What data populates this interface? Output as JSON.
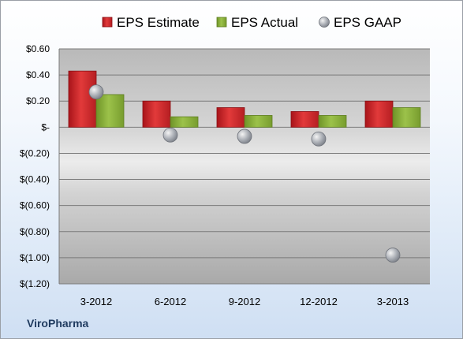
{
  "company": "ViroPharma",
  "chart_data": {
    "type": "bar",
    "categories": [
      "3-2012",
      "6-2012",
      "9-2012",
      "12-2012",
      "3-2013"
    ],
    "series": [
      {
        "name": "EPS Estimate",
        "kind": "bar",
        "color": "#d42a2a",
        "values": [
          0.43,
          0.2,
          0.15,
          0.12,
          0.2
        ]
      },
      {
        "name": "EPS Actual",
        "kind": "bar",
        "color": "#8db33c",
        "values": [
          0.25,
          0.08,
          0.09,
          0.09,
          0.15
        ]
      },
      {
        "name": "EPS GAAP",
        "kind": "scatter",
        "color": "#b8bcc4",
        "values": [
          0.27,
          -0.06,
          -0.07,
          -0.09,
          -0.98
        ]
      }
    ],
    "ylim": [
      -1.2,
      0.6
    ],
    "y_ticks": [
      0.6,
      0.4,
      0.2,
      0,
      -0.2,
      -0.4,
      -0.6,
      -0.8,
      -1.0,
      -1.2
    ],
    "y_tick_labels": [
      "$0.60",
      "$0.40",
      "$0.20",
      "$-",
      "$(0.20)",
      "$(0.40)",
      "$(0.60)",
      "$(0.80)",
      "$(1.00)",
      "$(1.20)"
    ],
    "grid": true,
    "legend_position": "top"
  }
}
